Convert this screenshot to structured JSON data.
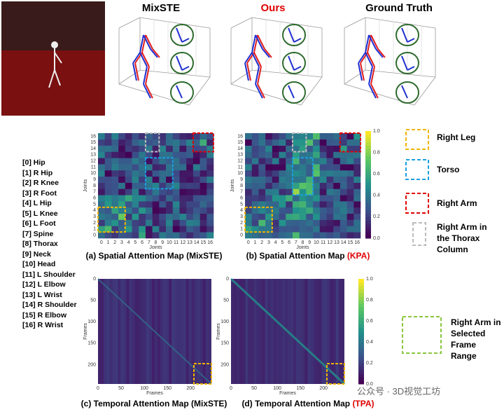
{
  "header": {
    "titles": [
      "MixSTE",
      "Ours",
      "Ground Truth"
    ]
  },
  "joints": [
    "[0] Hip",
    "[1] R Hip",
    "[2] R Knee",
    "[3] R Foot",
    "[4] L Hip",
    "[5] L Knee",
    "[6] L Foot",
    "[7] Spine",
    "[8] Thorax",
    "[9] Neck",
    "[10] Head",
    "[11] L Shoulder",
    "[12] L Elbow",
    "[13] L Wrist",
    "[14] R Shoulder",
    "[15] R Elbow",
    "[16] R Wrist"
  ],
  "spatial_maps": {
    "x_label": "Joints",
    "y_label": "Joints",
    "ticks": [
      "0",
      "1",
      "2",
      "3",
      "4",
      "5",
      "6",
      "7",
      "8",
      "9",
      "10",
      "11",
      "12",
      "13",
      "14",
      "15",
      "16"
    ],
    "colorbar_ticks": [
      "0.0",
      "0.2",
      "0.4",
      "0.6",
      "0.8",
      "1.0"
    ]
  },
  "temporal_maps": {
    "x_label": "Frames",
    "y_label": "Frames",
    "ticks": [
      "0",
      "50",
      "100",
      "150",
      "200"
    ],
    "colorbar_ticks": [
      "0.0",
      "0.2",
      "0.4",
      "0.6",
      "0.8",
      "1.0"
    ]
  },
  "captions": [
    {
      "text": "(a) Spatial Attention Map (MixSTE)"
    },
    {
      "text": "(b) Spatial Attention Map ",
      "highlight": "(KPA)"
    },
    {
      "text": "(c) Temporal Attention Map (MixSTE)"
    },
    {
      "text": "(d) Temporal Attention Map ",
      "highlight": "(TPA)"
    }
  ],
  "legend": [
    "Right Leg",
    "Torso",
    "Right Arm",
    "Right Arm in the Thorax Column",
    "Right Arm in Selected Frame Range"
  ],
  "watermark": "公众号 · 3D视觉工坊"
}
